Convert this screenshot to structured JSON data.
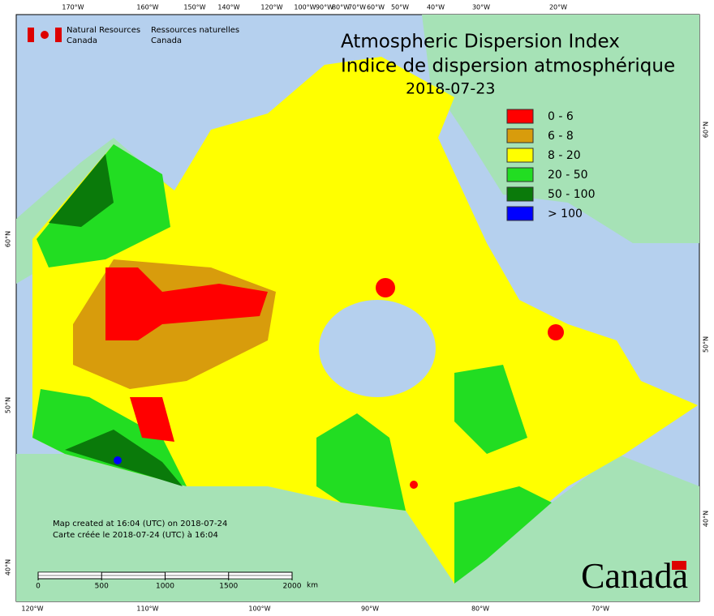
{
  "header": {
    "org_en": "Natural Resources",
    "org_en_2": "Canada",
    "org_fr": "Ressources naturelles",
    "org_fr_2": "Canada"
  },
  "title": {
    "en": "Atmospheric Dispersion Index",
    "fr": "Indice de dispersion atmosphérique",
    "date": "2018-07-23"
  },
  "legend": [
    {
      "label": "0 - 6",
      "color": "#ff0000"
    },
    {
      "label": "6 - 8",
      "color": "#d89c0c"
    },
    {
      "label": "8 - 20",
      "color": "#ffff00"
    },
    {
      "label": "20 - 50",
      "color": "#22dd22"
    },
    {
      "label": "50 - 100",
      "color": "#0a7a0a"
    },
    {
      "label": "> 100",
      "color": "#0000ff"
    }
  ],
  "top_longitudes": [
    "170°W",
    "160°W",
    "150°W",
    "140°W",
    "120°W",
    "100°W",
    "90°W",
    "80°W",
    "70°W",
    "60°W",
    "50°W",
    "40°W",
    "30°W",
    "20°W"
  ],
  "bottom_longitudes": [
    "120°W",
    "110°W",
    "100°W",
    "90°W",
    "80°W",
    "70°W"
  ],
  "left_latitudes": [
    "60°N",
    "50°N",
    "40°N"
  ],
  "right_latitudes": [
    "60°N",
    "50°N",
    "40°N"
  ],
  "footer": {
    "created_en": "Map created at 16:04 (UTC) on 2018-07-24",
    "created_fr": "Carte créée le 2018-07-24 (UTC) à 16:04"
  },
  "scale": {
    "ticks": [
      0,
      500,
      1000,
      1500,
      2000
    ],
    "unit": "km"
  },
  "wordmark": "Canada"
}
